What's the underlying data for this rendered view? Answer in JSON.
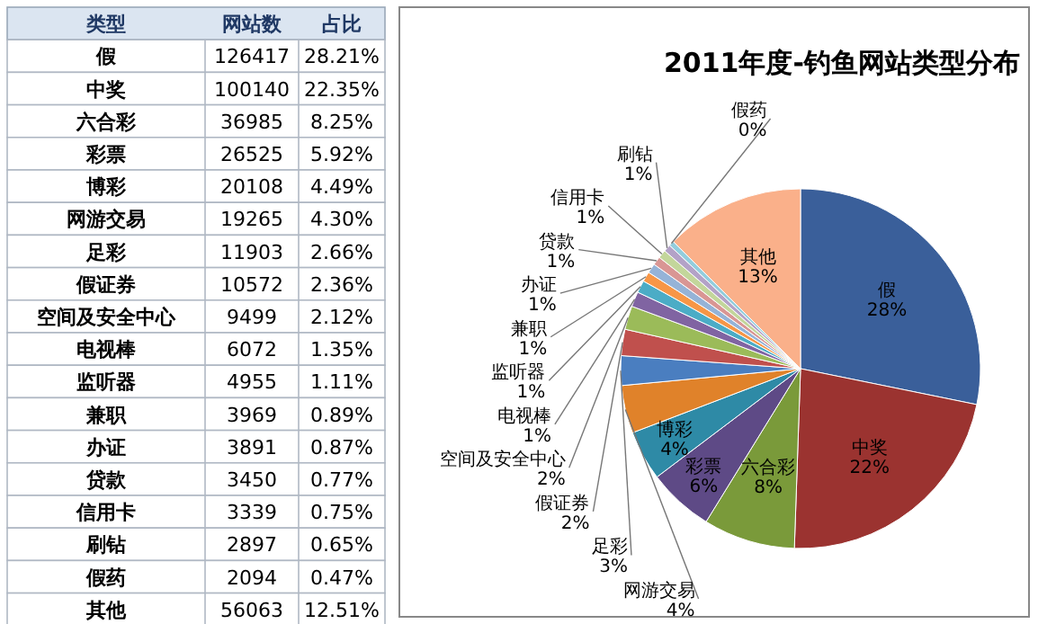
{
  "chart_data": [
    {
      "type": "other",
      "xlabel": "类型",
      "categories": [
        "假",
        "中奖",
        "六合彩",
        "彩票",
        "博彩",
        "网游交易",
        "足彩",
        "假证券",
        "空间及安全中心",
        "电视棒",
        "监听器",
        "兼职",
        "办证",
        "贷款",
        "信用卡",
        "刷钻",
        "假药",
        "其他"
      ],
      "data_labels": true,
      "series": [
        {
          "name": "网站数",
          "values": [
            126417,
            100140,
            36985,
            26525,
            20108,
            19265,
            11903,
            10572,
            9499,
            6072,
            4955,
            3969,
            3891,
            3450,
            3339,
            2897,
            2094,
            56063
          ]
        },
        {
          "name": "占比",
          "values": [
            28.21,
            22.35,
            8.25,
            5.92,
            4.49,
            4.3,
            2.66,
            2.36,
            2.12,
            1.35,
            1.11,
            0.89,
            0.87,
            0.77,
            0.75,
            0.65,
            0.47,
            12.51
          ],
          "value_labels": [
            "28.21%",
            "22.35%",
            "8.25%",
            "5.92%",
            "4.49%",
            "4.30%",
            "2.66%",
            "2.36%",
            "2.12%",
            "1.35%",
            "1.11%",
            "0.89%",
            "0.87%",
            "0.77%",
            "0.75%",
            "0.65%",
            "0.47%",
            "12.51%"
          ]
        }
      ]
    },
    {
      "type": "pie",
      "title": "2011年度-钓鱼网站类型分布",
      "categories": [
        "假",
        "中奖",
        "六合彩",
        "彩票",
        "博彩",
        "网游交易",
        "足彩",
        "假证券",
        "空间及安全中心",
        "电视棒",
        "监听器",
        "兼职",
        "办证",
        "贷款",
        "信用卡",
        "刷钻",
        "假药",
        "其他"
      ],
      "values": [
        28.21,
        22.35,
        8.25,
        5.92,
        4.49,
        4.3,
        2.66,
        2.36,
        2.12,
        1.35,
        1.11,
        0.89,
        0.87,
        0.77,
        0.75,
        0.65,
        0.47,
        12.51
      ],
      "value_labels": [
        "28%",
        "22%",
        "8%",
        "6%",
        "4%",
        "4%",
        "3%",
        "2%",
        "2%",
        "1%",
        "1%",
        "1%",
        "1%",
        "1%",
        "1%",
        "1%",
        "0%",
        "13%"
      ],
      "colors": [
        "#3a5f9a",
        "#9b3330",
        "#7a9a3a",
        "#5e4a86",
        "#2e8aa6",
        "#e0822a",
        "#4a7ec0",
        "#c0504d",
        "#9bbb59",
        "#8064a2",
        "#4bacc6",
        "#f79646",
        "#95b3d7",
        "#d99694",
        "#c3d69b",
        "#b3a2c7",
        "#93cddd",
        "#fab08a"
      ]
    }
  ]
}
